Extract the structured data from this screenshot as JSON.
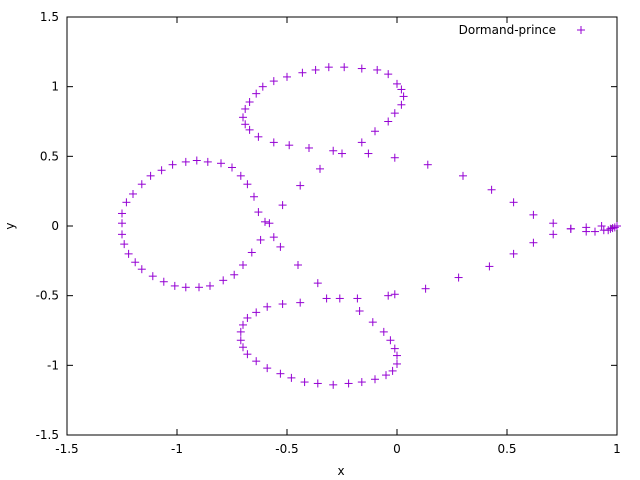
{
  "chart_data": {
    "type": "scatter",
    "title": "",
    "xlabel": "x",
    "ylabel": "y",
    "xlim": [
      -1.5,
      1
    ],
    "ylim": [
      -1.5,
      1.5
    ],
    "x_ticks": [
      -1.5,
      -1,
      -0.5,
      0,
      0.5,
      1
    ],
    "y_ticks": [
      -1.5,
      -1,
      -0.5,
      0,
      0.5,
      1,
      1.5
    ],
    "x_tick_labels": [
      "-1.5",
      "-1",
      "-0.5",
      "0",
      "0.5",
      "1"
    ],
    "y_tick_labels": [
      "-1.5",
      "-1",
      "-0.5",
      "0",
      "0.5",
      "1",
      "1.5"
    ],
    "grid": false,
    "legend_position": "top-right",
    "series": [
      {
        "name": "Dormand-prince",
        "color": "#9400d3",
        "marker": "plus",
        "points": [
          [
            1.0,
            0.0
          ],
          [
            0.99,
            -0.01
          ],
          [
            0.98,
            -0.015
          ],
          [
            0.97,
            -0.02
          ],
          [
            0.96,
            -0.03
          ],
          [
            0.94,
            -0.03
          ],
          [
            0.93,
            0.0
          ],
          [
            0.9,
            -0.04
          ],
          [
            0.86,
            -0.04
          ],
          [
            0.86,
            -0.01
          ],
          [
            0.79,
            -0.02
          ],
          [
            0.79,
            -0.02
          ],
          [
            0.71,
            -0.06
          ],
          [
            0.71,
            0.02
          ],
          [
            0.62,
            -0.12
          ],
          [
            0.62,
            0.08
          ],
          [
            0.53,
            -0.2
          ],
          [
            0.53,
            0.17
          ],
          [
            0.42,
            -0.29
          ],
          [
            0.43,
            0.26
          ],
          [
            0.28,
            -0.37
          ],
          [
            0.3,
            0.36
          ],
          [
            0.13,
            -0.45
          ],
          [
            0.14,
            0.44
          ],
          [
            -0.01,
            -0.49
          ],
          [
            -0.01,
            0.49
          ],
          [
            -0.13,
            0.52
          ],
          [
            -0.16,
            0.6
          ],
          [
            -0.1,
            0.68
          ],
          [
            -0.04,
            0.75
          ],
          [
            -0.01,
            0.81
          ],
          [
            0.02,
            0.87
          ],
          [
            0.03,
            0.93
          ],
          [
            0.02,
            0.98
          ],
          [
            0.0,
            1.02
          ],
          [
            -0.04,
            1.09
          ],
          [
            -0.09,
            1.12
          ],
          [
            -0.16,
            1.13
          ],
          [
            -0.24,
            1.14
          ],
          [
            -0.31,
            1.14
          ],
          [
            -0.37,
            1.12
          ],
          [
            -0.43,
            1.1
          ],
          [
            -0.5,
            1.07
          ],
          [
            -0.56,
            1.04
          ],
          [
            -0.61,
            1.0
          ],
          [
            -0.64,
            0.95
          ],
          [
            -0.67,
            0.89
          ],
          [
            -0.69,
            0.84
          ],
          [
            -0.7,
            0.78
          ],
          [
            -0.69,
            0.73
          ],
          [
            -0.67,
            0.69
          ],
          [
            -0.63,
            0.64
          ],
          [
            -0.56,
            0.6
          ],
          [
            -0.49,
            0.58
          ],
          [
            -0.4,
            0.56
          ],
          [
            -0.29,
            0.54
          ],
          [
            -0.25,
            0.52
          ],
          [
            -0.35,
            0.41
          ],
          [
            -0.44,
            0.29
          ],
          [
            -0.52,
            0.15
          ],
          [
            -0.58,
            0.02
          ],
          [
            -0.56,
            -0.08
          ],
          [
            -0.62,
            -0.1
          ],
          [
            -0.66,
            -0.19
          ],
          [
            -0.7,
            -0.28
          ],
          [
            -0.74,
            -0.35
          ],
          [
            -0.79,
            -0.39
          ],
          [
            -0.85,
            -0.43
          ],
          [
            -0.9,
            -0.44
          ],
          [
            -0.96,
            -0.44
          ],
          [
            -1.01,
            -0.43
          ],
          [
            -1.06,
            -0.4
          ],
          [
            -1.11,
            -0.36
          ],
          [
            -1.16,
            -0.31
          ],
          [
            -1.19,
            -0.26
          ],
          [
            -1.22,
            -0.2
          ],
          [
            -1.24,
            -0.13
          ],
          [
            -1.25,
            -0.06
          ],
          [
            -1.25,
            0.02
          ],
          [
            -1.25,
            0.09
          ],
          [
            -1.23,
            0.17
          ],
          [
            -1.2,
            0.23
          ],
          [
            -1.16,
            0.3
          ],
          [
            -1.12,
            0.36
          ],
          [
            -1.07,
            0.4
          ],
          [
            -1.02,
            0.44
          ],
          [
            -0.96,
            0.46
          ],
          [
            -0.91,
            0.47
          ],
          [
            -0.86,
            0.46
          ],
          [
            -0.8,
            0.45
          ],
          [
            -0.75,
            0.42
          ],
          [
            -0.71,
            0.36
          ],
          [
            -0.68,
            0.3
          ],
          [
            -0.65,
            0.21
          ],
          [
            -0.63,
            0.1
          ],
          [
            -0.6,
            0.03
          ],
          [
            -0.53,
            -0.15
          ],
          [
            -0.45,
            -0.28
          ],
          [
            -0.36,
            -0.41
          ],
          [
            -0.44,
            -0.55
          ],
          [
            -0.52,
            -0.56
          ],
          [
            -0.59,
            -0.58
          ],
          [
            -0.64,
            -0.62
          ],
          [
            -0.68,
            -0.66
          ],
          [
            -0.7,
            -0.71
          ],
          [
            -0.71,
            -0.76
          ],
          [
            -0.71,
            -0.82
          ],
          [
            -0.7,
            -0.87
          ],
          [
            -0.68,
            -0.92
          ],
          [
            -0.64,
            -0.97
          ],
          [
            -0.59,
            -1.02
          ],
          [
            -0.53,
            -1.06
          ],
          [
            -0.48,
            -1.09
          ],
          [
            -0.42,
            -1.12
          ],
          [
            -0.36,
            -1.13
          ],
          [
            -0.29,
            -1.14
          ],
          [
            -0.22,
            -1.13
          ],
          [
            -0.16,
            -1.12
          ],
          [
            -0.1,
            -1.1
          ],
          [
            -0.05,
            -1.07
          ],
          [
            -0.02,
            -1.04
          ],
          [
            0.0,
            -0.99
          ],
          [
            0.0,
            -0.93
          ],
          [
            -0.01,
            -0.88
          ],
          [
            -0.03,
            -0.82
          ],
          [
            -0.06,
            -0.76
          ],
          [
            -0.11,
            -0.69
          ],
          [
            -0.17,
            -0.61
          ],
          [
            -0.18,
            -0.52
          ],
          [
            -0.26,
            -0.52
          ],
          [
            -0.32,
            -0.52
          ],
          [
            -0.04,
            -0.5
          ]
        ]
      }
    ]
  }
}
